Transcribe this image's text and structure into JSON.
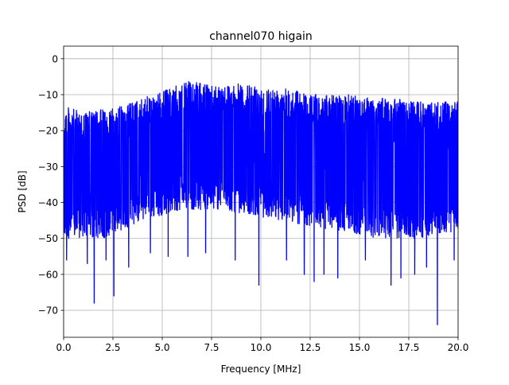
{
  "chart_data": {
    "type": "line",
    "title": "channel070 higain",
    "xlabel": "Frequency [MHz]",
    "ylabel": "PSD [dB]",
    "xlim": [
      0,
      20
    ],
    "ylim": [
      -77.5,
      3.5
    ],
    "xticks": [
      0.0,
      2.5,
      5.0,
      7.5,
      10.0,
      12.5,
      15.0,
      17.5,
      20.0
    ],
    "xtick_labels": [
      "0.0",
      "2.5",
      "5.0",
      "7.5",
      "10.0",
      "12.5",
      "15.0",
      "17.5",
      "20.0"
    ],
    "yticks": [
      0,
      -10,
      -20,
      -30,
      -40,
      -50,
      -60,
      -70
    ],
    "ytick_labels": [
      "0",
      "−10",
      "−20",
      "−30",
      "−40",
      "−50",
      "−60",
      "−70"
    ],
    "grid": true,
    "series": [
      {
        "color": "#0000ff",
        "upper_envelope": {
          "x": [
            0,
            0.5,
            1,
            2,
            3,
            4,
            5,
            6,
            6.5,
            7,
            8,
            9,
            10,
            11,
            12,
            13,
            14,
            15,
            16,
            17,
            18,
            19,
            20
          ],
          "y": [
            -13,
            -14,
            -15,
            -14,
            -13,
            -11,
            -9,
            -7,
            -6,
            -7,
            -7,
            -7,
            -8,
            -8,
            -9,
            -10,
            -10,
            -10,
            -11,
            -11,
            -12,
            -12,
            -12
          ]
        },
        "typical_lower_envelope": {
          "x": [
            0,
            2,
            4,
            6,
            8,
            10,
            12,
            14,
            16,
            18,
            20
          ],
          "y": [
            -50,
            -50,
            -45,
            -42,
            -42,
            -44,
            -46,
            -48,
            -50,
            -50,
            -48
          ]
        },
        "deep_dips": [
          {
            "x": 0.15,
            "y": -56
          },
          {
            "x": 1.2,
            "y": -57
          },
          {
            "x": 1.55,
            "y": -68
          },
          {
            "x": 2.15,
            "y": -56
          },
          {
            "x": 2.55,
            "y": -66
          },
          {
            "x": 3.3,
            "y": -58
          },
          {
            "x": 4.4,
            "y": -54
          },
          {
            "x": 5.3,
            "y": -55
          },
          {
            "x": 6.3,
            "y": -55
          },
          {
            "x": 7.2,
            "y": -54
          },
          {
            "x": 8.7,
            "y": -56
          },
          {
            "x": 9.9,
            "y": -63
          },
          {
            "x": 11.3,
            "y": -56
          },
          {
            "x": 12.2,
            "y": -60
          },
          {
            "x": 12.7,
            "y": -62
          },
          {
            "x": 13.2,
            "y": -60
          },
          {
            "x": 13.9,
            "y": -61
          },
          {
            "x": 15.3,
            "y": -56
          },
          {
            "x": 16.6,
            "y": -63
          },
          {
            "x": 17.1,
            "y": -61
          },
          {
            "x": 17.8,
            "y": -60
          },
          {
            "x": 18.4,
            "y": -58
          },
          {
            "x": 18.95,
            "y": -74
          },
          {
            "x": 19.8,
            "y": -56
          }
        ]
      }
    ]
  }
}
